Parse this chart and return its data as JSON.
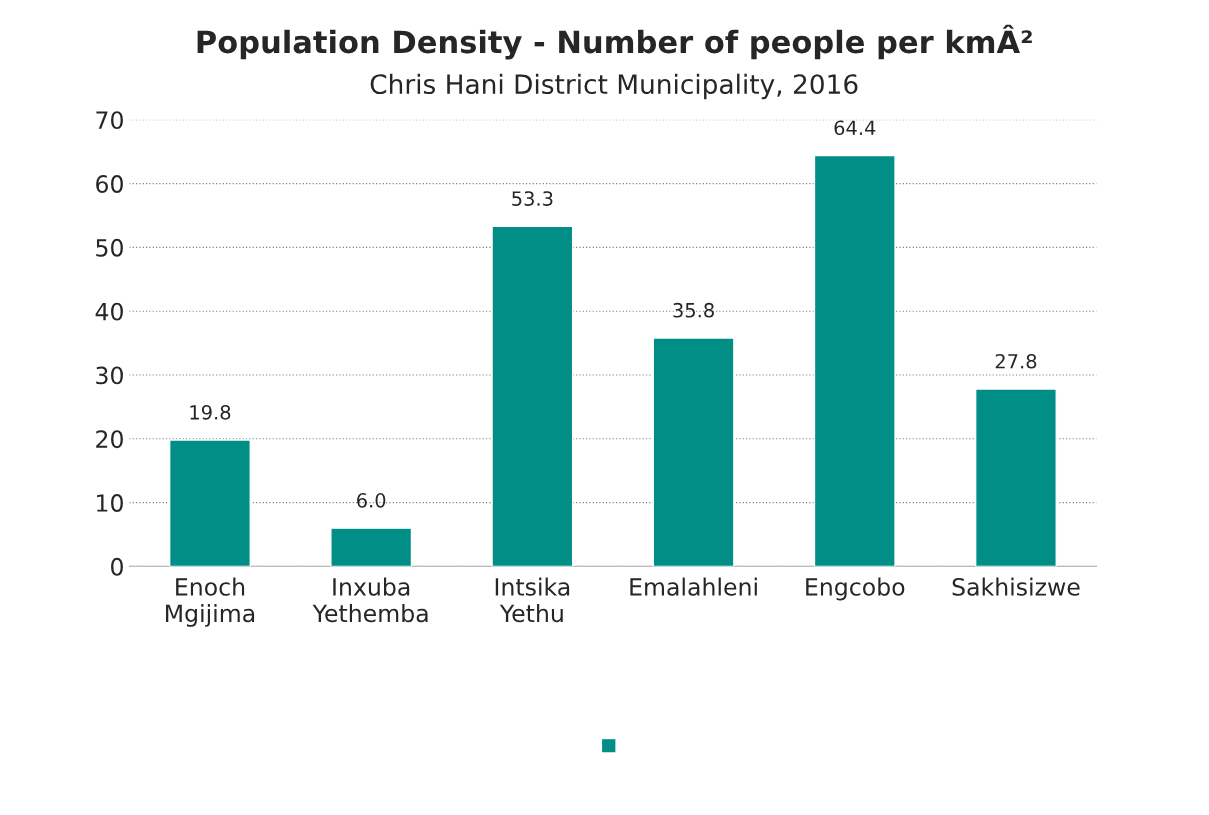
{
  "chart_data": {
    "type": "bar",
    "title": "Population Density - Number of people per kmÂ²",
    "subtitle": "Chris Hani District Municipality, 2016",
    "categories": [
      "Enoch\nMgijima",
      "Inxuba\nYethemba",
      "Intsika\nYethu",
      "Emalahleni",
      "Engcobo",
      "Sakhisizwe"
    ],
    "series": [
      {
        "color": "#008e86",
        "values": [
          19.8,
          6.0,
          53.3,
          35.8,
          64.4,
          27.8
        ]
      }
    ],
    "value_labels": [
      "19.8",
      "6.0",
      "53.3",
      "35.8",
      "64.4",
      "27.8"
    ],
    "ylim": [
      0,
      70
    ],
    "yticks": [
      0,
      10,
      20,
      30,
      40,
      50,
      60,
      70
    ],
    "grid": "y"
  }
}
